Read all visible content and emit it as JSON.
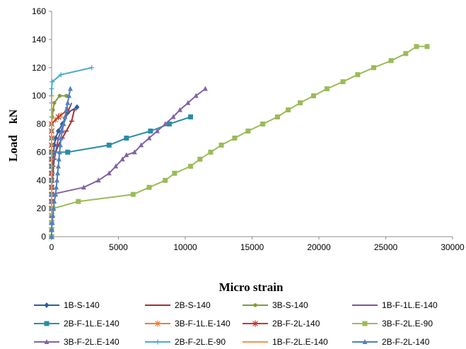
{
  "chart_data": {
    "type": "line",
    "title": "",
    "xlabel": "Micro strain",
    "ylabel": "Load",
    "ylabel_unit": "kN",
    "xlim": [
      0,
      30000
    ],
    "ylim": [
      0,
      160
    ],
    "xticks": [
      "0",
      "5000",
      "10000",
      "15000",
      "20000",
      "25000",
      "30000"
    ],
    "yticks": [
      "0",
      "20",
      "40",
      "60",
      "80",
      "100",
      "120",
      "140",
      "160"
    ],
    "grid": false,
    "legend_position": "bottom",
    "series": [
      {
        "name": "1B-S-140",
        "color": "#2E5E9A",
        "marker": "diamond",
        "x": [
          0,
          0,
          0,
          0,
          0,
          0,
          0,
          0,
          0,
          0,
          50,
          100,
          150,
          200,
          300,
          500,
          800,
          1200,
          1900
        ],
        "y": [
          0,
          5,
          10,
          15,
          20,
          25,
          30,
          35,
          40,
          45,
          50,
          55,
          60,
          65,
          70,
          75,
          80,
          88,
          92
        ]
      },
      {
        "name": "2B-S-140",
        "color": "#A0322E",
        "marker": "dash",
        "x": [
          0,
          0,
          0,
          0,
          0,
          0,
          0,
          0,
          0,
          50,
          100,
          200,
          300,
          500,
          800,
          1100,
          1500,
          1700
        ],
        "y": [
          0,
          5,
          10,
          15,
          20,
          25,
          30,
          35,
          40,
          45,
          50,
          55,
          60,
          65,
          70,
          75,
          82,
          90
        ]
      },
      {
        "name": "3B-S-140",
        "color": "#7D9D3A",
        "marker": "circle",
        "x": [
          0,
          0,
          0,
          0,
          0,
          0,
          0,
          0,
          0,
          0,
          0,
          0,
          0,
          0,
          0,
          0,
          0,
          50,
          100,
          200,
          600,
          1100
        ],
        "y": [
          0,
          5,
          10,
          15,
          20,
          25,
          30,
          35,
          40,
          45,
          50,
          55,
          60,
          65,
          70,
          75,
          80,
          85,
          90,
          95,
          100,
          100
        ]
      },
      {
        "name": "1B-F-1L.E-140",
        "color": "#7A559C",
        "marker": "line",
        "x": [
          0,
          0,
          0,
          0,
          0,
          0,
          0,
          0,
          50,
          100,
          150,
          200,
          300,
          400,
          500,
          700,
          900,
          1200,
          1500
        ],
        "y": [
          0,
          5,
          10,
          15,
          20,
          25,
          30,
          35,
          40,
          45,
          50,
          55,
          60,
          65,
          70,
          75,
          80,
          88,
          95
        ]
      },
      {
        "name": "2B-F-1L.E-140",
        "color": "#2A8DA5",
        "marker": "square",
        "x": [
          0,
          0,
          0,
          0,
          0,
          0,
          0,
          0,
          0,
          0,
          0,
          0,
          0,
          1200,
          4300,
          5600,
          7400,
          8800,
          10400
        ],
        "y": [
          0,
          5,
          10,
          15,
          20,
          25,
          30,
          35,
          40,
          45,
          50,
          55,
          60,
          60,
          65,
          70,
          75,
          80,
          85
        ]
      },
      {
        "name": "3B-F-1L.E-140",
        "color": "#E5803A",
        "marker": "star",
        "x": [
          0,
          0,
          0,
          0,
          0,
          0,
          0,
          0,
          0,
          0,
          0,
          0,
          0,
          0,
          0,
          0,
          0,
          300,
          700
        ],
        "y": [
          0,
          5,
          10,
          15,
          20,
          25,
          30,
          35,
          40,
          45,
          50,
          55,
          60,
          65,
          70,
          75,
          80,
          83,
          86
        ]
      },
      {
        "name": "2B-F-2L-140",
        "color": "#C0392B",
        "marker": "star",
        "x": [
          0,
          0,
          0,
          0,
          0,
          0,
          0,
          0,
          0,
          0,
          0,
          0,
          0,
          0,
          0,
          0,
          0,
          500,
          1200
        ],
        "y": [
          0,
          5,
          10,
          15,
          20,
          25,
          30,
          35,
          40,
          45,
          50,
          55,
          60,
          65,
          70,
          75,
          80,
          85,
          90
        ]
      },
      {
        "name": "3B-F-2L.E-90",
        "color": "#9BBB59",
        "marker": "square",
        "x": [
          0,
          0,
          0,
          0,
          100,
          2000,
          6100,
          7300,
          8500,
          9200,
          10400,
          11100,
          11900,
          12700,
          13700,
          14700,
          15800,
          16900,
          17700,
          18600,
          19600,
          20600,
          21800,
          22900,
          24100,
          25400,
          26500,
          27300,
          28100
        ],
        "y": [
          0,
          5,
          10,
          15,
          20,
          25,
          30,
          35,
          40,
          45,
          50,
          55,
          60,
          65,
          70,
          75,
          80,
          85,
          90,
          95,
          100,
          105,
          110,
          115,
          120,
          125,
          130,
          135,
          135
        ]
      },
      {
        "name": "3B-F-2L.E-140",
        "color": "#8064A2",
        "marker": "triangle",
        "x": [
          0,
          0,
          0,
          0,
          0,
          0,
          0,
          2400,
          3500,
          4300,
          4800,
          5300,
          5600,
          6200,
          6700,
          7300,
          7900,
          8500,
          9100,
          9600,
          10200,
          10800,
          11500
        ],
        "y": [
          0,
          5,
          10,
          15,
          20,
          25,
          30,
          35,
          40,
          45,
          50,
          55,
          58,
          60,
          65,
          70,
          75,
          80,
          85,
          90,
          95,
          100,
          105
        ]
      },
      {
        "name": "2B-F-2L.E-90",
        "color": "#4BACC6",
        "marker": "cross",
        "x": [
          0,
          0,
          0,
          0,
          0,
          0,
          0,
          0,
          0,
          0,
          0,
          0,
          0,
          0,
          0,
          0,
          0,
          0,
          0,
          0,
          0,
          0,
          50,
          700,
          3000
        ],
        "y": [
          0,
          5,
          10,
          15,
          20,
          25,
          30,
          35,
          40,
          45,
          50,
          55,
          60,
          65,
          70,
          75,
          80,
          85,
          90,
          95,
          100,
          105,
          110,
          115,
          120
        ]
      },
      {
        "name": "1B-F-2L.E-140",
        "color": "#F79646",
        "marker": "line",
        "x": [
          0,
          0,
          0,
          0,
          0,
          0,
          0,
          0,
          0,
          0,
          0,
          0,
          0,
          0,
          0,
          0,
          0,
          0,
          0,
          0,
          0
        ],
        "y": [
          0,
          5,
          10,
          15,
          20,
          25,
          30,
          35,
          40,
          45,
          50,
          55,
          60,
          65,
          70,
          75,
          80,
          85,
          90,
          95,
          100
        ]
      },
      {
        "name": "2B-F-2L-140",
        "color": "#4F81BD",
        "marker": "triangle",
        "x": [
          0,
          0,
          50,
          100,
          150,
          200,
          300,
          350,
          400,
          450,
          500,
          550,
          600,
          650,
          700,
          800,
          900,
          1000,
          1100,
          1200,
          1300,
          1400
        ],
        "y": [
          0,
          5,
          10,
          15,
          20,
          25,
          30,
          35,
          40,
          45,
          50,
          55,
          60,
          65,
          70,
          75,
          80,
          85,
          90,
          95,
          100,
          105
        ]
      }
    ]
  }
}
